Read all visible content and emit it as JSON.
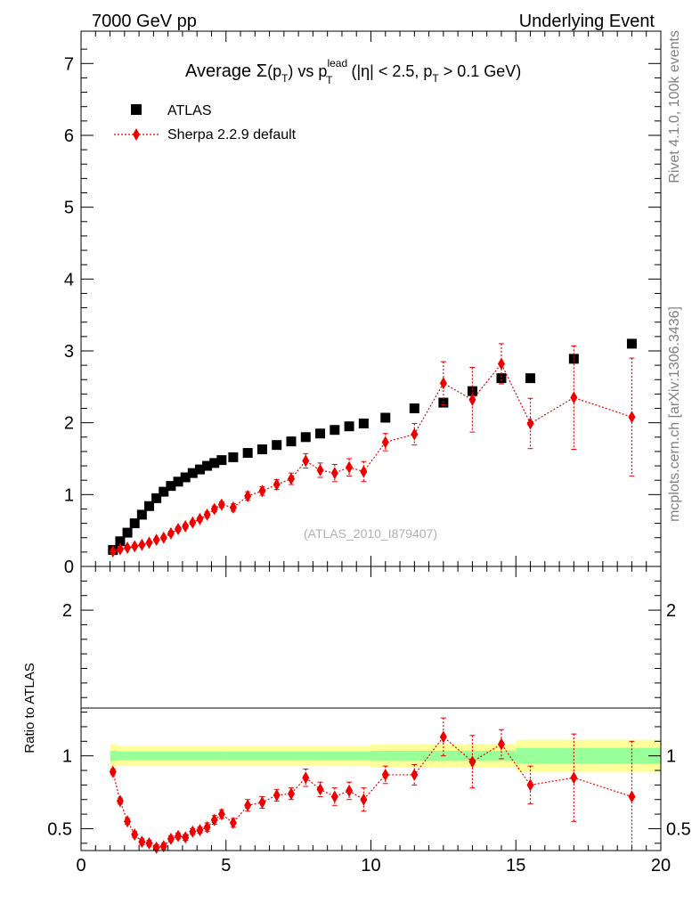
{
  "header": {
    "left": "7000 GeV pp",
    "right": "Underlying Event"
  },
  "side": {
    "rivet": "Rivet 4.1.0,  100k events",
    "mcplots": "mcplots.cern.ch [arXiv:1306.3436]"
  },
  "colors": {
    "data": "#000000",
    "mc": "#ee0000",
    "band_inner": "#99ff99",
    "band_outer": "#ffff99"
  },
  "chart_data": [
    {
      "type": "scatter",
      "panel": "main",
      "title": {
        "prefix": "Average ",
        "sigma": "Σ",
        "p": "p",
        "T": "T",
        "vs": " vs p",
        "lead": "lead",
        "cut": " (|η| < 2.5, p",
        "cut_end": " > 0.1 GeV)"
      },
      "watermark": "(ATLAS_2010_I879407)",
      "xlim": [
        0,
        20
      ],
      "ylim": [
        0,
        7.45
      ],
      "yticks": [
        0,
        1,
        2,
        3,
        4,
        5,
        6,
        7
      ],
      "ytick_labels": [
        "0",
        "1",
        "2",
        "3",
        "4",
        "5",
        "6",
        "7"
      ],
      "legend": {
        "location": "top-left",
        "entries": [
          "ATLAS",
          "Sherpa 2.2.9 default"
        ]
      },
      "series": [
        {
          "name": "ATLAS",
          "marker": "square",
          "x": [
            1.1,
            1.35,
            1.6,
            1.85,
            2.1,
            2.35,
            2.6,
            2.85,
            3.1,
            3.35,
            3.6,
            3.85,
            4.1,
            4.35,
            4.6,
            4.85,
            5.25,
            5.75,
            6.25,
            6.75,
            7.25,
            7.75,
            8.25,
            8.75,
            9.25,
            9.75,
            10.5,
            11.5,
            12.5,
            13.5,
            14.5,
            15.5,
            17.0,
            19.0
          ],
          "y": [
            0.23,
            0.35,
            0.47,
            0.6,
            0.72,
            0.84,
            0.95,
            1.04,
            1.12,
            1.18,
            1.24,
            1.3,
            1.35,
            1.4,
            1.44,
            1.48,
            1.52,
            1.58,
            1.63,
            1.69,
            1.74,
            1.8,
            1.85,
            1.9,
            1.95,
            1.99,
            2.07,
            2.2,
            2.28,
            2.44,
            2.62,
            2.62,
            2.89,
            3.1
          ]
        },
        {
          "name": "Sherpa 2.2.9 default",
          "marker": "diamond",
          "x": [
            1.1,
            1.35,
            1.6,
            1.85,
            2.1,
            2.35,
            2.6,
            2.85,
            3.1,
            3.35,
            3.6,
            3.85,
            4.1,
            4.35,
            4.6,
            4.85,
            5.25,
            5.75,
            6.25,
            6.75,
            7.25,
            7.75,
            8.25,
            8.75,
            9.25,
            9.75,
            10.5,
            11.5,
            12.5,
            13.5,
            14.5,
            15.5,
            17.0,
            19.0
          ],
          "y": [
            0.21,
            0.24,
            0.26,
            0.28,
            0.3,
            0.33,
            0.37,
            0.4,
            0.46,
            0.52,
            0.56,
            0.61,
            0.66,
            0.72,
            0.8,
            0.86,
            0.82,
            0.98,
            1.05,
            1.14,
            1.22,
            1.47,
            1.34,
            1.3,
            1.38,
            1.32,
            1.73,
            1.84,
            2.55,
            2.32,
            2.82,
            1.99,
            2.35,
            2.08
          ],
          "err": [
            0.02,
            0.02,
            0.02,
            0.02,
            0.02,
            0.02,
            0.02,
            0.02,
            0.03,
            0.03,
            0.03,
            0.03,
            0.03,
            0.04,
            0.04,
            0.04,
            0.05,
            0.06,
            0.06,
            0.07,
            0.08,
            0.1,
            0.1,
            0.12,
            0.12,
            0.14,
            0.12,
            0.15,
            0.3,
            0.45,
            0.28,
            0.35,
            0.72,
            0.82
          ]
        }
      ]
    },
    {
      "type": "scatter",
      "panel": "ratio",
      "ylabel": "Ratio to ATLAS",
      "xlim": [
        0,
        20
      ],
      "ylim": [
        0.35,
        2.3
      ],
      "yticks": [
        0.5,
        1,
        2
      ],
      "ytick_labels": [
        "0.5",
        "1",
        "2"
      ],
      "xticks": [
        0,
        5,
        10,
        15,
        20
      ],
      "xtick_labels": [
        "0",
        "5",
        "10",
        "15",
        "20"
      ],
      "band_edges": [
        1.0,
        1.25,
        5.0,
        10.0,
        15.0,
        20.0
      ],
      "band_inner": [
        0.035,
        0.03,
        0.03,
        0.035,
        0.055
      ],
      "band_outer": [
        0.08,
        0.07,
        0.07,
        0.08,
        0.11
      ],
      "series": [
        {
          "name": "Sherpa 2.2.9 default",
          "x": [
            1.1,
            1.35,
            1.6,
            1.85,
            2.1,
            2.35,
            2.6,
            2.85,
            3.1,
            3.35,
            3.6,
            3.85,
            4.1,
            4.35,
            4.6,
            4.85,
            5.25,
            5.75,
            6.25,
            6.75,
            7.25,
            7.75,
            8.25,
            8.75,
            9.25,
            9.75,
            10.5,
            11.5,
            12.5,
            13.5,
            14.5,
            15.5,
            17.0,
            19.0
          ],
          "y": [
            0.89,
            0.69,
            0.55,
            0.46,
            0.41,
            0.4,
            0.37,
            0.38,
            0.43,
            0.45,
            0.44,
            0.48,
            0.49,
            0.51,
            0.56,
            0.6,
            0.54,
            0.66,
            0.68,
            0.73,
            0.74,
            0.85,
            0.77,
            0.72,
            0.76,
            0.7,
            0.87,
            0.87,
            1.13,
            0.96,
            1.08,
            0.8,
            0.85,
            0.72
          ],
          "err": [
            0.02,
            0.02,
            0.02,
            0.02,
            0.02,
            0.02,
            0.02,
            0.02,
            0.02,
            0.02,
            0.02,
            0.02,
            0.02,
            0.03,
            0.03,
            0.03,
            0.03,
            0.04,
            0.04,
            0.04,
            0.04,
            0.06,
            0.05,
            0.06,
            0.06,
            0.08,
            0.06,
            0.07,
            0.13,
            0.18,
            0.1,
            0.13,
            0.3,
            0.38
          ]
        }
      ]
    }
  ]
}
